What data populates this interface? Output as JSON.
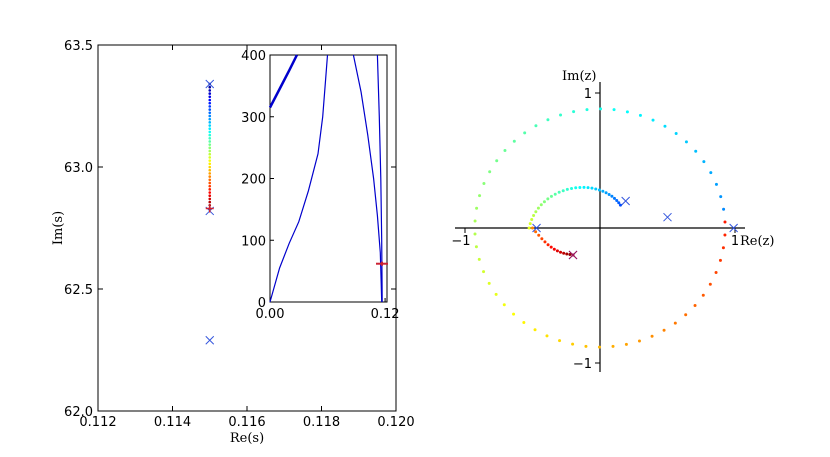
{
  "chart_data": [
    {
      "type": "scatter",
      "panel": "main",
      "xlabel": "Re(s)",
      "ylabel": "Im(s)",
      "xlim": [
        0.112,
        0.12
      ],
      "ylim": [
        62.0,
        63.5
      ],
      "xticks": [
        "0.112",
        "0.114",
        "0.116",
        "0.118",
        "0.120"
      ],
      "yticks": [
        "62.0",
        "62.5",
        "63.0",
        "63.5"
      ],
      "series": [
        {
          "kind": "trajectory",
          "x": 0.115,
          "y_start": 63.34,
          "y_end": 62.83,
          "points": 40,
          "colormap": "jet"
        },
        {
          "kind": "poles",
          "marker": "x",
          "color": "#3355dd",
          "points": [
            [
              0.115,
              63.34
            ],
            [
              0.115,
              62.82
            ],
            [
              0.115,
              62.29
            ]
          ]
        },
        {
          "kind": "end",
          "marker": "+",
          "color": "#cc2233",
          "points": [
            [
              0.115,
              62.83
            ]
          ]
        }
      ]
    },
    {
      "type": "line",
      "panel": "inset",
      "xlim": [
        0.0,
        0.122
      ],
      "ylim": [
        0,
        400
      ],
      "xticks": [
        "0.00",
        "0.12"
      ],
      "yticks": [
        "0",
        "100",
        "200",
        "300",
        "400"
      ],
      "series": [
        {
          "points": [
            [
              0.0,
              315
            ],
            [
              0.01,
              345
            ],
            [
              0.02,
              375
            ],
            [
              0.028,
              400
            ]
          ],
          "color": "#0000cc",
          "width": 2.5
        },
        {
          "points": [
            [
              0.0,
              0
            ],
            [
              0.01,
              55
            ],
            [
              0.02,
              95
            ],
            [
              0.03,
              130
            ],
            [
              0.04,
              180
            ],
            [
              0.05,
              240
            ],
            [
              0.055,
              300
            ],
            [
              0.058,
              360
            ],
            [
              0.06,
              400
            ]
          ],
          "color": "#0000cc",
          "width": 1.2
        },
        {
          "points": [
            [
              0.087,
              400
            ],
            [
              0.095,
              340
            ],
            [
              0.102,
              270
            ],
            [
              0.108,
              200
            ],
            [
              0.112,
              140
            ],
            [
              0.115,
              80
            ],
            [
              0.116,
              30
            ],
            [
              0.1165,
              0
            ]
          ],
          "color": "#0000cc",
          "width": 1.2
        },
        {
          "points": [
            [
              0.112,
              400
            ],
            [
              0.114,
              300
            ],
            [
              0.1155,
              200
            ],
            [
              0.1165,
              100
            ],
            [
              0.117,
              0
            ]
          ],
          "color": "#0000cc",
          "width": 1.2
        }
      ],
      "marker": {
        "x": 0.1168,
        "y": 62,
        "symbol": "+",
        "color": "#cc2233"
      }
    },
    {
      "type": "scatter",
      "panel": "z-plane",
      "xlabel": "Re(z)",
      "ylabel": "Im(z)",
      "xlim": [
        -1.1,
        1.1
      ],
      "ylim": [
        -1.1,
        1.1
      ],
      "xticks": [
        "−1",
        "1"
      ],
      "yticks": [
        "1",
        "−1"
      ],
      "circle": {
        "count": 58,
        "start_angle_deg": 0,
        "direction": "ccw",
        "radius": 0.9
      },
      "spiral": {
        "count": 30,
        "from": [
          -0.5,
          0.0
        ],
        "to": [
          0.2,
          0.2
        ]
      },
      "spiral2": {
        "count": 14,
        "from": [
          -0.5,
          0.0
        ],
        "to": [
          -0.2,
          -0.2
        ]
      },
      "poles": {
        "marker": "x",
        "color": "#3355dd",
        "points": [
          [
            0.99,
            0.0
          ],
          [
            0.5,
            0.08
          ],
          [
            0.19,
            0.2
          ],
          [
            -0.47,
            0.0
          ],
          [
            -0.2,
            -0.2
          ]
        ]
      },
      "end": {
        "marker": "x",
        "color": "#aa1155",
        "points": [
          [
            -0.2,
            -0.2
          ]
        ]
      }
    }
  ]
}
